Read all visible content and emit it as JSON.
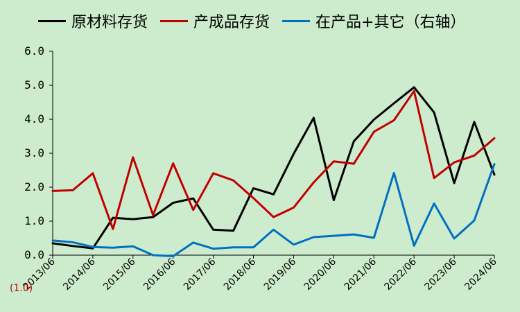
{
  "chart_data": {
    "type": "line",
    "x": [
      "2013/06",
      "2013/12",
      "2014/06",
      "2014/12",
      "2015/06",
      "2015/12",
      "2016/06",
      "2016/12",
      "2017/06",
      "2017/12",
      "2018/06",
      "2018/12",
      "2019/06",
      "2019/12",
      "2020/06",
      "2020/12",
      "2021/06",
      "2021/12",
      "2022/06",
      "2022/12",
      "2023/06",
      "2023/12",
      "2024/06"
    ],
    "x_tick_labels": [
      "2013/06",
      "2014/06",
      "2015/06",
      "2016/06",
      "2017/06",
      "2018/06",
      "2019/06",
      "2020/06",
      "2021/06",
      "2022/06",
      "2023/06",
      "2024/06"
    ],
    "ylim": [
      0,
      6
    ],
    "y_ticks": [
      "0.0",
      "1.0",
      "2.0",
      "3.0",
      "4.0",
      "5.0",
      "6.0"
    ],
    "series": [
      {
        "name": "原材料存货",
        "color": "#000000",
        "values": [
          0.35,
          0.27,
          0.2,
          1.1,
          1.06,
          1.12,
          1.54,
          1.67,
          0.75,
          0.72,
          1.97,
          1.79,
          2.98,
          4.04,
          1.62,
          3.35,
          3.99,
          4.47,
          4.94,
          4.2,
          2.12,
          3.92,
          2.37
        ]
      },
      {
        "name": "产成品存货",
        "color": "#c00000",
        "values": [
          1.89,
          1.91,
          2.41,
          0.77,
          2.88,
          1.18,
          2.7,
          1.33,
          2.41,
          2.2,
          1.68,
          1.12,
          1.4,
          2.14,
          2.76,
          2.69,
          3.63,
          3.97,
          4.83,
          2.27,
          2.73,
          2.93,
          3.44
        ]
      },
      {
        "name": "在产品+其它（右轴）",
        "color": "#0070c0",
        "values": [
          0.43,
          0.38,
          0.24,
          0.22,
          0.26,
          0.0,
          -0.03,
          0.37,
          0.19,
          0.23,
          0.23,
          0.75,
          0.31,
          0.53,
          0.57,
          0.61,
          0.51,
          2.42,
          0.28,
          1.52,
          0.49,
          1.02,
          2.68
        ]
      }
    ]
  },
  "note": "(1.0)"
}
